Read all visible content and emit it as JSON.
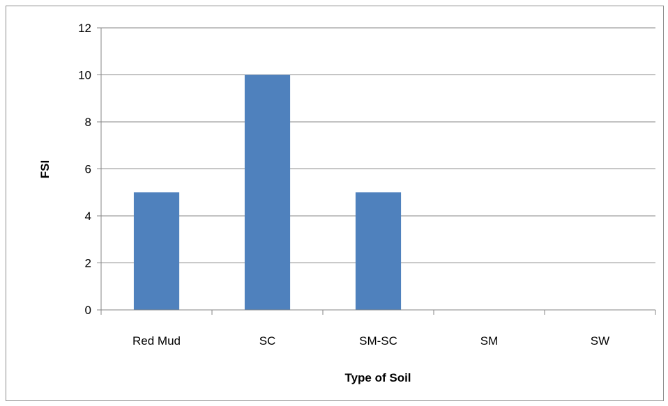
{
  "chart_data": {
    "type": "bar",
    "title": "",
    "xlabel": "Type of Soil",
    "ylabel": "FSI",
    "categories": [
      "Red Mud",
      "SC",
      "SM-SC",
      "SM",
      "SW"
    ],
    "values": [
      5,
      10,
      5,
      0,
      0
    ],
    "ylim": [
      0,
      12
    ],
    "yticks": [
      0,
      2,
      4,
      6,
      8,
      10,
      12
    ],
    "grid": "horizontal",
    "legend": "none",
    "bar_color": "#4f81bd",
    "grid_color": "#868686",
    "axis_color": "#868686"
  }
}
